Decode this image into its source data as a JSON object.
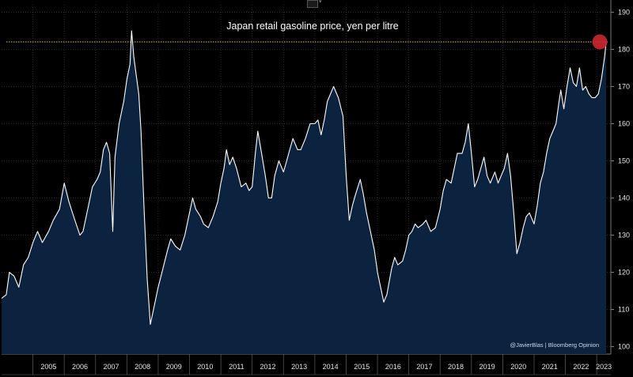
{
  "colors": {
    "background": "#000000",
    "area_fill": "#0c2340",
    "line": "#ffffff",
    "reference_line": "#e7d04a",
    "highlight_marker": "#c8262d",
    "grid": "#3a3a3a"
  },
  "icons": {
    "chart_toggle": "line-chart-icon",
    "dropdown": "chevron-down-icon"
  },
  "chart_data": {
    "type": "area",
    "title": "Japan retail gasoline price, yen per litre",
    "credit": "@JavierBlas | Bloomberg Opinion",
    "xlabel": "",
    "ylabel": "",
    "ylim": [
      98,
      192
    ],
    "xlim": [
      2004.0,
      2023.45
    ],
    "y_ticks": [
      100,
      110,
      120,
      130,
      140,
      150,
      160,
      170,
      180,
      190
    ],
    "x_tick_labels": [
      "2005",
      "2006",
      "2007",
      "2008",
      "2009",
      "2010",
      "2011",
      "2012",
      "2013",
      "2014",
      "2015",
      "2016",
      "2017",
      "2018",
      "2019",
      "2020",
      "2021",
      "2022",
      "2023"
    ],
    "grid": true,
    "reference_line": {
      "value": 182
    },
    "highlight_point": {
      "x": 2023.3,
      "y": 182
    },
    "series": [
      {
        "values": [
          [
            2004.0,
            113
          ],
          [
            2004.15,
            114
          ],
          [
            2004.25,
            120
          ],
          [
            2004.4,
            119
          ],
          [
            2004.55,
            116
          ],
          [
            2004.7,
            122
          ],
          [
            2004.85,
            124
          ],
          [
            2005.0,
            128
          ],
          [
            2005.15,
            131
          ],
          [
            2005.3,
            128
          ],
          [
            2005.5,
            131
          ],
          [
            2005.65,
            134
          ],
          [
            2005.85,
            137
          ],
          [
            2006.0,
            144
          ],
          [
            2006.15,
            139
          ],
          [
            2006.3,
            135
          ],
          [
            2006.5,
            130
          ],
          [
            2006.6,
            131
          ],
          [
            2006.75,
            137
          ],
          [
            2006.9,
            143
          ],
          [
            2007.05,
            145
          ],
          [
            2007.15,
            147
          ],
          [
            2007.25,
            153
          ],
          [
            2007.35,
            155
          ],
          [
            2007.45,
            152
          ],
          [
            2007.55,
            131
          ],
          [
            2007.62,
            151
          ],
          [
            2007.75,
            160
          ],
          [
            2007.9,
            166
          ],
          [
            2008.0,
            172
          ],
          [
            2008.1,
            176
          ],
          [
            2008.15,
            185
          ],
          [
            2008.22,
            178
          ],
          [
            2008.3,
            173
          ],
          [
            2008.38,
            168
          ],
          [
            2008.45,
            158
          ],
          [
            2008.55,
            137
          ],
          [
            2008.65,
            118
          ],
          [
            2008.75,
            106
          ],
          [
            2008.85,
            110
          ],
          [
            2009.0,
            116
          ],
          [
            2009.15,
            121
          ],
          [
            2009.3,
            126
          ],
          [
            2009.4,
            129
          ],
          [
            2009.55,
            127
          ],
          [
            2009.7,
            126
          ],
          [
            2009.85,
            130
          ],
          [
            2010.0,
            136
          ],
          [
            2010.1,
            140
          ],
          [
            2010.2,
            137
          ],
          [
            2010.35,
            135
          ],
          [
            2010.45,
            133
          ],
          [
            2010.6,
            132
          ],
          [
            2010.75,
            135
          ],
          [
            2010.9,
            139
          ],
          [
            2011.0,
            144
          ],
          [
            2011.1,
            148
          ],
          [
            2011.18,
            153
          ],
          [
            2011.28,
            149
          ],
          [
            2011.38,
            151
          ],
          [
            2011.5,
            148
          ],
          [
            2011.65,
            143
          ],
          [
            2011.8,
            144
          ],
          [
            2011.9,
            142
          ],
          [
            2012.0,
            143
          ],
          [
            2012.1,
            152
          ],
          [
            2012.18,
            158
          ],
          [
            2012.3,
            152
          ],
          [
            2012.42,
            146
          ],
          [
            2012.52,
            140
          ],
          [
            2012.62,
            140
          ],
          [
            2012.72,
            146
          ],
          [
            2012.85,
            150
          ],
          [
            2013.0,
            147
          ],
          [
            2013.1,
            150
          ],
          [
            2013.2,
            153
          ],
          [
            2013.3,
            156
          ],
          [
            2013.45,
            153
          ],
          [
            2013.55,
            153
          ],
          [
            2013.7,
            156
          ],
          [
            2013.85,
            160
          ],
          [
            2014.0,
            160
          ],
          [
            2014.1,
            161
          ],
          [
            2014.2,
            157
          ],
          [
            2014.3,
            161
          ],
          [
            2014.4,
            166
          ],
          [
            2014.5,
            168
          ],
          [
            2014.6,
            170
          ],
          [
            2014.75,
            167
          ],
          [
            2014.9,
            162
          ],
          [
            2015.0,
            146
          ],
          [
            2015.1,
            134
          ],
          [
            2015.2,
            138
          ],
          [
            2015.3,
            141
          ],
          [
            2015.45,
            145
          ],
          [
            2015.55,
            141
          ],
          [
            2015.65,
            136
          ],
          [
            2015.75,
            132
          ],
          [
            2015.9,
            126
          ],
          [
            2016.0,
            120
          ],
          [
            2016.1,
            116
          ],
          [
            2016.2,
            112
          ],
          [
            2016.3,
            114
          ],
          [
            2016.45,
            121
          ],
          [
            2016.55,
            124
          ],
          [
            2016.65,
            122
          ],
          [
            2016.8,
            123
          ],
          [
            2016.9,
            126
          ],
          [
            2017.0,
            130
          ],
          [
            2017.1,
            131
          ],
          [
            2017.2,
            133
          ],
          [
            2017.3,
            132
          ],
          [
            2017.45,
            133
          ],
          [
            2017.55,
            134
          ],
          [
            2017.7,
            131
          ],
          [
            2017.85,
            132
          ],
          [
            2018.0,
            137
          ],
          [
            2018.1,
            142
          ],
          [
            2018.2,
            145
          ],
          [
            2018.35,
            144
          ],
          [
            2018.45,
            148
          ],
          [
            2018.55,
            152
          ],
          [
            2018.7,
            152
          ],
          [
            2018.8,
            155
          ],
          [
            2018.9,
            160
          ],
          [
            2019.0,
            152
          ],
          [
            2019.1,
            143
          ],
          [
            2019.2,
            145
          ],
          [
            2019.3,
            148
          ],
          [
            2019.4,
            151
          ],
          [
            2019.5,
            146
          ],
          [
            2019.6,
            144
          ],
          [
            2019.75,
            147
          ],
          [
            2019.85,
            144
          ],
          [
            2019.95,
            146
          ],
          [
            2020.05,
            148
          ],
          [
            2020.15,
            152
          ],
          [
            2020.25,
            146
          ],
          [
            2020.35,
            136
          ],
          [
            2020.45,
            125
          ],
          [
            2020.55,
            128
          ],
          [
            2020.65,
            132
          ],
          [
            2020.75,
            135
          ],
          [
            2020.85,
            136
          ],
          [
            2021.0,
            133
          ],
          [
            2021.1,
            138
          ],
          [
            2021.2,
            144
          ],
          [
            2021.3,
            147
          ],
          [
            2021.4,
            152
          ],
          [
            2021.5,
            156
          ],
          [
            2021.6,
            158
          ],
          [
            2021.7,
            160
          ],
          [
            2021.78,
            165
          ],
          [
            2021.85,
            169
          ],
          [
            2021.95,
            164
          ],
          [
            2022.05,
            170
          ],
          [
            2022.15,
            175
          ],
          [
            2022.25,
            171
          ],
          [
            2022.35,
            170
          ],
          [
            2022.45,
            175
          ],
          [
            2022.55,
            169
          ],
          [
            2022.65,
            170
          ],
          [
            2022.75,
            168
          ],
          [
            2022.85,
            167
          ],
          [
            2022.95,
            167
          ],
          [
            2023.05,
            168
          ],
          [
            2023.15,
            172
          ],
          [
            2023.25,
            178
          ],
          [
            2023.3,
            182
          ]
        ]
      }
    ]
  }
}
